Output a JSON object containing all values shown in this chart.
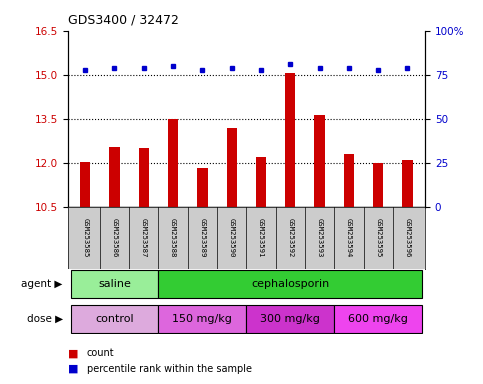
{
  "title": "GDS3400 / 32472",
  "samples": [
    "GSM253585",
    "GSM253586",
    "GSM253587",
    "GSM253588",
    "GSM253589",
    "GSM253590",
    "GSM253591",
    "GSM253592",
    "GSM253593",
    "GSM253594",
    "GSM253595",
    "GSM253596"
  ],
  "count_values": [
    12.05,
    12.55,
    12.5,
    13.5,
    11.85,
    13.2,
    12.2,
    15.05,
    13.65,
    12.3,
    12.0,
    12.1
  ],
  "percentile_values": [
    78,
    79,
    79,
    80,
    78,
    79,
    78,
    81,
    79,
    79,
    78,
    79
  ],
  "ylim_left": [
    10.5,
    16.5
  ],
  "ylim_right": [
    0,
    100
  ],
  "yticks_left": [
    10.5,
    12.0,
    13.5,
    15.0,
    16.5
  ],
  "yticks_right": [
    0,
    25,
    50,
    75,
    100
  ],
  "ytick_labels_right": [
    "0",
    "25",
    "50",
    "75",
    "100%"
  ],
  "grid_yticks": [
    12.0,
    13.5,
    15.0
  ],
  "bar_color": "#cc0000",
  "dot_color": "#0000cc",
  "bar_width": 0.35,
  "agent_groups": [
    {
      "label": "saline",
      "start": 0,
      "end": 3,
      "color": "#99ee99"
    },
    {
      "label": "cephalosporin",
      "start": 3,
      "end": 12,
      "color": "#33cc33"
    }
  ],
  "dose_groups": [
    {
      "label": "control",
      "start": 0,
      "end": 3,
      "color": "#ddaadd"
    },
    {
      "label": "150 mg/kg",
      "start": 3,
      "end": 6,
      "color": "#dd66dd"
    },
    {
      "label": "300 mg/kg",
      "start": 6,
      "end": 9,
      "color": "#cc33cc"
    },
    {
      "label": "600 mg/kg",
      "start": 9,
      "end": 12,
      "color": "#ee44ee"
    }
  ],
  "left_tick_color": "#cc0000",
  "right_tick_color": "#0000cc",
  "legend_count_color": "#cc0000",
  "legend_dot_color": "#0000cc",
  "background_color": "#ffffff",
  "tick_label_bg": "#cccccc"
}
